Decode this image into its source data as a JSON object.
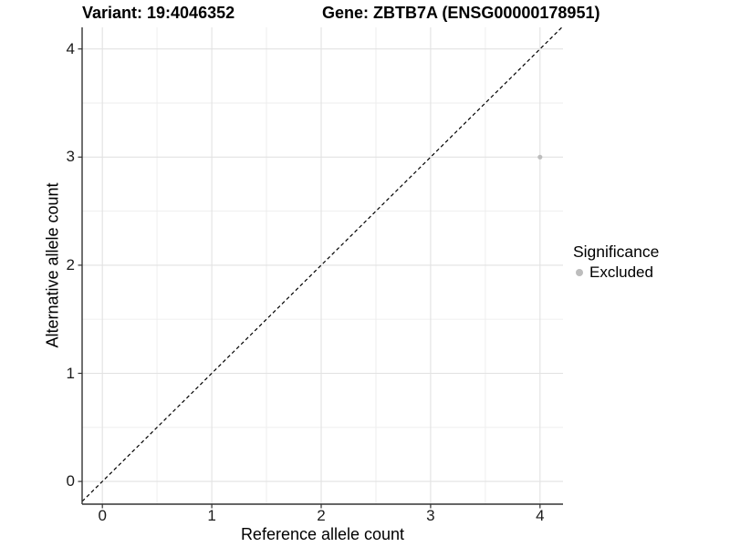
{
  "chart_data": {
    "type": "scatter",
    "titles": {
      "left": "Variant: 19:4046352",
      "right": "Gene: ZBTB7A (ENSG00000178951)"
    },
    "xlabel": "Reference allele count",
    "ylabel": "Alternative allele count",
    "x_ticks": [
      0,
      1,
      2,
      3,
      4
    ],
    "y_ticks": [
      0,
      1,
      2,
      3,
      4
    ],
    "xlim": [
      -0.185,
      4.21
    ],
    "ylim": [
      -0.21,
      4.2
    ],
    "minor_grid_step": 0.5,
    "grid": true,
    "identity_line": {
      "slope": 1,
      "intercept": 0,
      "style": "dashed",
      "color": "#000000"
    },
    "series": [
      {
        "name": "Excluded",
        "color": "#bdbdbd",
        "point_radius": 2.6,
        "points": [
          [
            4,
            3
          ]
        ]
      }
    ],
    "legend": {
      "title": "Significance",
      "position": "right",
      "items": [
        {
          "label": "Excluded",
          "color": "#bdbdbd"
        }
      ]
    },
    "style": {
      "background": "#ffffff",
      "grid_major_color": "#e2e2e2",
      "grid_minor_color": "#ededed",
      "axis_color": "#333333",
      "tick_label_color": "#1a1a1a"
    }
  }
}
